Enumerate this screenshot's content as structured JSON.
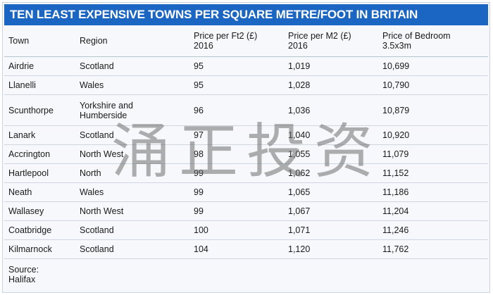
{
  "title": "TEN LEAST EXPENSIVE TOWNS PER SQUARE METRE/FOOT IN BRITAIN",
  "columns": [
    {
      "line1": "Town",
      "line2": ""
    },
    {
      "line1": "Region",
      "line2": ""
    },
    {
      "line1": "Price per Ft2 (£)",
      "line2": "2016"
    },
    {
      "line1": "Price per M2 (£)",
      "line2": "2016"
    },
    {
      "line1": "Price of Bedroom",
      "line2": "3.5x3m"
    }
  ],
  "rows": [
    {
      "town": "Airdrie",
      "region": "Scotland",
      "region2": "",
      "ft2": "95",
      "m2": "1,019",
      "bedroom": "10,699"
    },
    {
      "town": "Llanelli",
      "region": "Wales",
      "region2": "",
      "ft2": "95",
      "m2": "1,028",
      "bedroom": "10,790"
    },
    {
      "town": "Scunthorpe",
      "region": "Yorkshire and",
      "region2": "Humberside",
      "ft2": "96",
      "m2": "1,036",
      "bedroom": "10,879"
    },
    {
      "town": "Lanark",
      "region": "Scotland",
      "region2": "",
      "ft2": "97",
      "m2": "1,040",
      "bedroom": "10,920"
    },
    {
      "town": "Accrington",
      "region": "North West",
      "region2": "",
      "ft2": "98",
      "m2": "1,055",
      "bedroom": "11,079"
    },
    {
      "town": "Hartlepool",
      "region": "North",
      "region2": "",
      "ft2": "99",
      "m2": "1,062",
      "bedroom": "11,152"
    },
    {
      "town": "Neath",
      "region": "Wales",
      "region2": "",
      "ft2": "99",
      "m2": "1,065",
      "bedroom": "11,186"
    },
    {
      "town": "Wallasey",
      "region": "North West",
      "region2": "",
      "ft2": "99",
      "m2": "1,067",
      "bedroom": "11,204"
    },
    {
      "town": "Coatbridge",
      "region": "Scotland",
      "region2": "",
      "ft2": "100",
      "m2": "1,071",
      "bedroom": "11,246"
    },
    {
      "town": "Kilmarnock",
      "region": "Scotland",
      "region2": "",
      "ft2": "104",
      "m2": "1,120",
      "bedroom": "11,762"
    }
  ],
  "source": {
    "line1": "Source:",
    "line2": "Halifax"
  },
  "watermark": "涌正投资",
  "colors": {
    "title_bg": "#1b66c2",
    "title_text": "#ffffff",
    "table_bg": "#f6f8fb",
    "row_border": "#cdd6df"
  }
}
